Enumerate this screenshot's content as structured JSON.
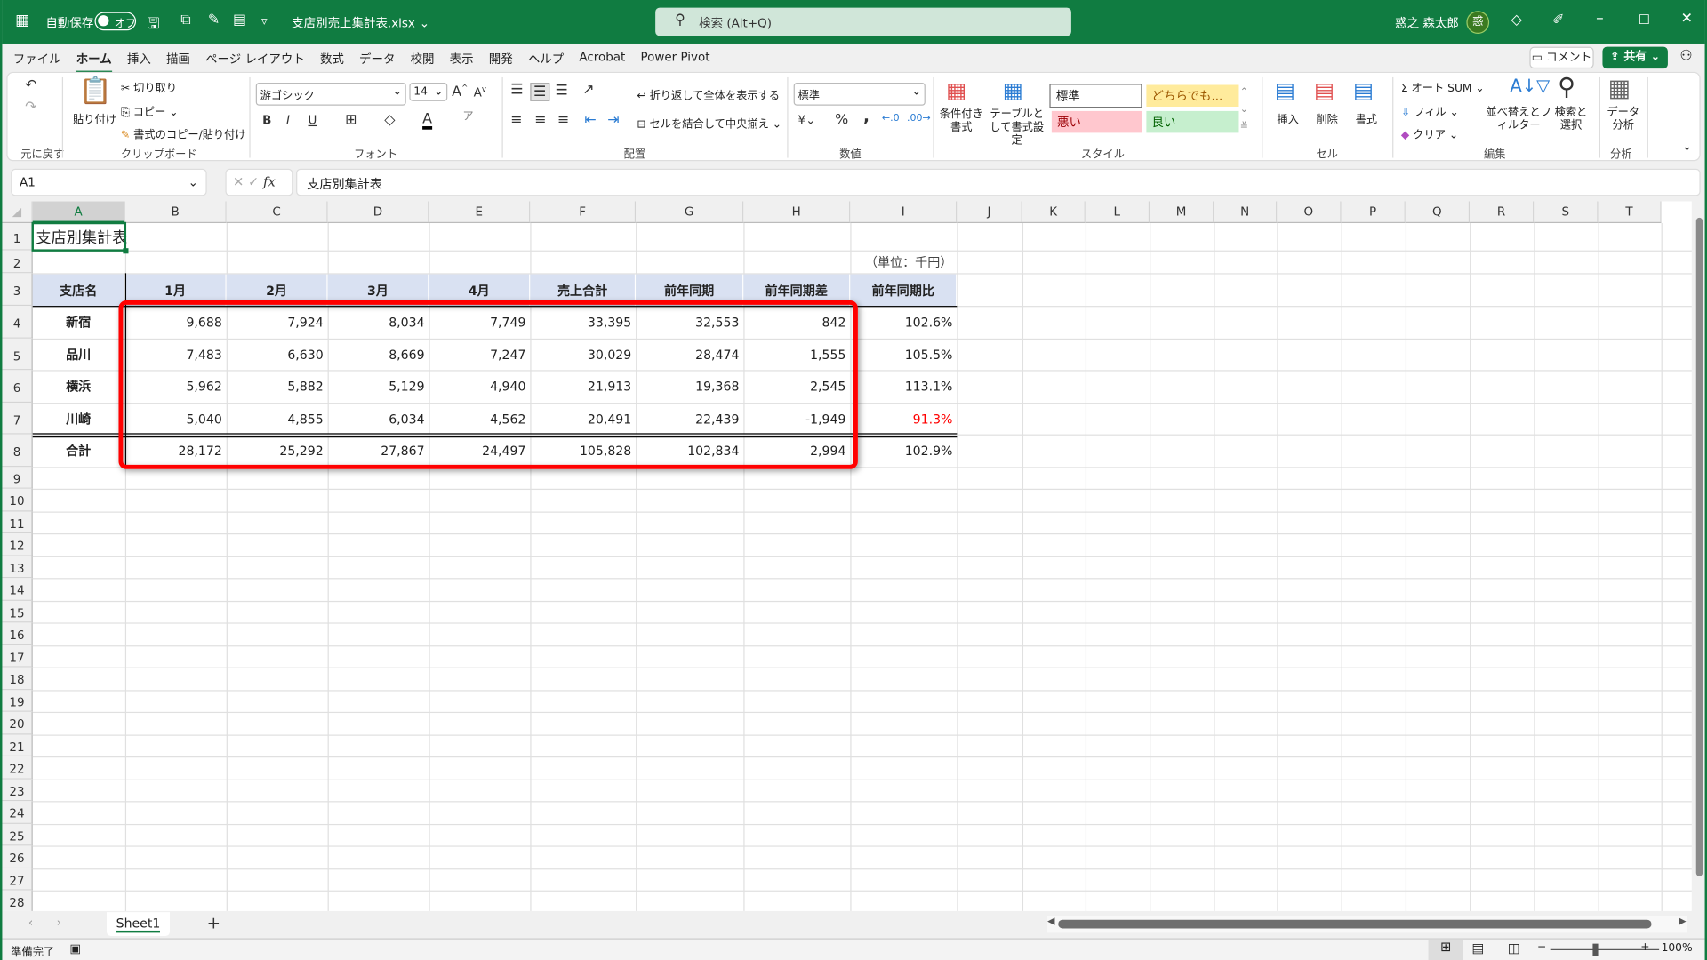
{
  "titlebar": {
    "autosave_label": "自動保存",
    "autosave_state": "オフ",
    "filename": "支店別売上集計表.xlsx",
    "search_placeholder": "検索 (Alt+Q)",
    "user_name": "惑之 森太郎",
    "avatar_text": "惑"
  },
  "menu": {
    "tabs": [
      "ファイル",
      "ホーム",
      "挿入",
      "描画",
      "ページ レイアウト",
      "数式",
      "データ",
      "校閲",
      "表示",
      "開発",
      "ヘルプ",
      "Acrobat",
      "Power Pivot"
    ],
    "active": "ホーム",
    "comment_label": "コメント",
    "share_label": "共有"
  },
  "ribbon": {
    "undo_group": "元に戻す",
    "clipboard": {
      "paste": "貼り付け",
      "cut": "切り取り",
      "copy": "コピー",
      "format_painter": "書式のコピー/貼り付け",
      "group": "クリップボード"
    },
    "font": {
      "name": "游ゴシック",
      "size": "14",
      "bold": "B",
      "italic": "I",
      "underline": "U",
      "group": "フォント"
    },
    "alignment": {
      "wrap": "折り返して全体を表示する",
      "merge": "セルを結合して中央揃え",
      "group": "配置"
    },
    "number": {
      "format": "標準",
      "percent": "%",
      "comma": ",",
      "group": "数値"
    },
    "styles": {
      "conditional": "条件付き書式",
      "table": "テーブルとして書式設定",
      "normal": "標準",
      "neutral": "どちらでも...",
      "bad": "悪い",
      "good": "良い",
      "group": "スタイル"
    },
    "cells": {
      "insert": "挿入",
      "delete": "削除",
      "format": "書式",
      "group": "セル"
    },
    "editing": {
      "autosum": "オート SUM",
      "fill": "フィル",
      "clear": "クリア",
      "sort": "並べ替えとフィルター",
      "find": "検索と選択",
      "group": "編集"
    },
    "analysis": {
      "data_analysis": "データ分析",
      "group": "分析"
    }
  },
  "formula_bar": {
    "name_box": "A1",
    "fx": "fx",
    "content": "支店別集計表"
  },
  "grid": {
    "columns": [
      "A",
      "B",
      "C",
      "D",
      "E",
      "F",
      "G",
      "H",
      "I",
      "J",
      "K",
      "L",
      "M",
      "N",
      "O",
      "P",
      "Q",
      "R",
      "S",
      "T"
    ],
    "rows": [
      "1",
      "2",
      "3",
      "4",
      "5",
      "6",
      "7",
      "8",
      "9",
      "10",
      "11",
      "12",
      "13",
      "14",
      "15",
      "16",
      "17",
      "18",
      "19",
      "20",
      "21",
      "22",
      "23",
      "24",
      "25",
      "26",
      "27",
      "28"
    ],
    "title": "支店別集計表",
    "unit": "（単位：千円）",
    "headers": [
      "支店名",
      "1月",
      "2月",
      "3月",
      "4月",
      "売上合計",
      "前年同期",
      "前年同期差",
      "前年同期比"
    ],
    "body": [
      [
        "新宿",
        "9,688",
        "7,924",
        "8,034",
        "7,749",
        "33,395",
        "32,553",
        "842",
        "102.6%"
      ],
      [
        "品川",
        "7,483",
        "6,630",
        "8,669",
        "7,247",
        "30,029",
        "28,474",
        "1,555",
        "105.5%"
      ],
      [
        "横浜",
        "5,962",
        "5,882",
        "5,129",
        "4,940",
        "21,913",
        "19,368",
        "2,545",
        "113.1%"
      ],
      [
        "川崎",
        "5,040",
        "4,855",
        "6,034",
        "4,562",
        "20,491",
        "22,439",
        "-1,949",
        "91.3%"
      ],
      [
        "合計",
        "28,172",
        "25,292",
        "27,867",
        "24,497",
        "105,828",
        "102,834",
        "2,994",
        "102.9%"
      ]
    ],
    "negative_color": "#ff0000",
    "header_fill": "#d9e1f2",
    "highlight_color": "#ff0000"
  },
  "sheets": {
    "tabs": [
      "Sheet1"
    ],
    "add": "+"
  },
  "status": {
    "ready": "準備完了",
    "zoom": "100%"
  },
  "colors": {
    "brand": "#107c41"
  }
}
